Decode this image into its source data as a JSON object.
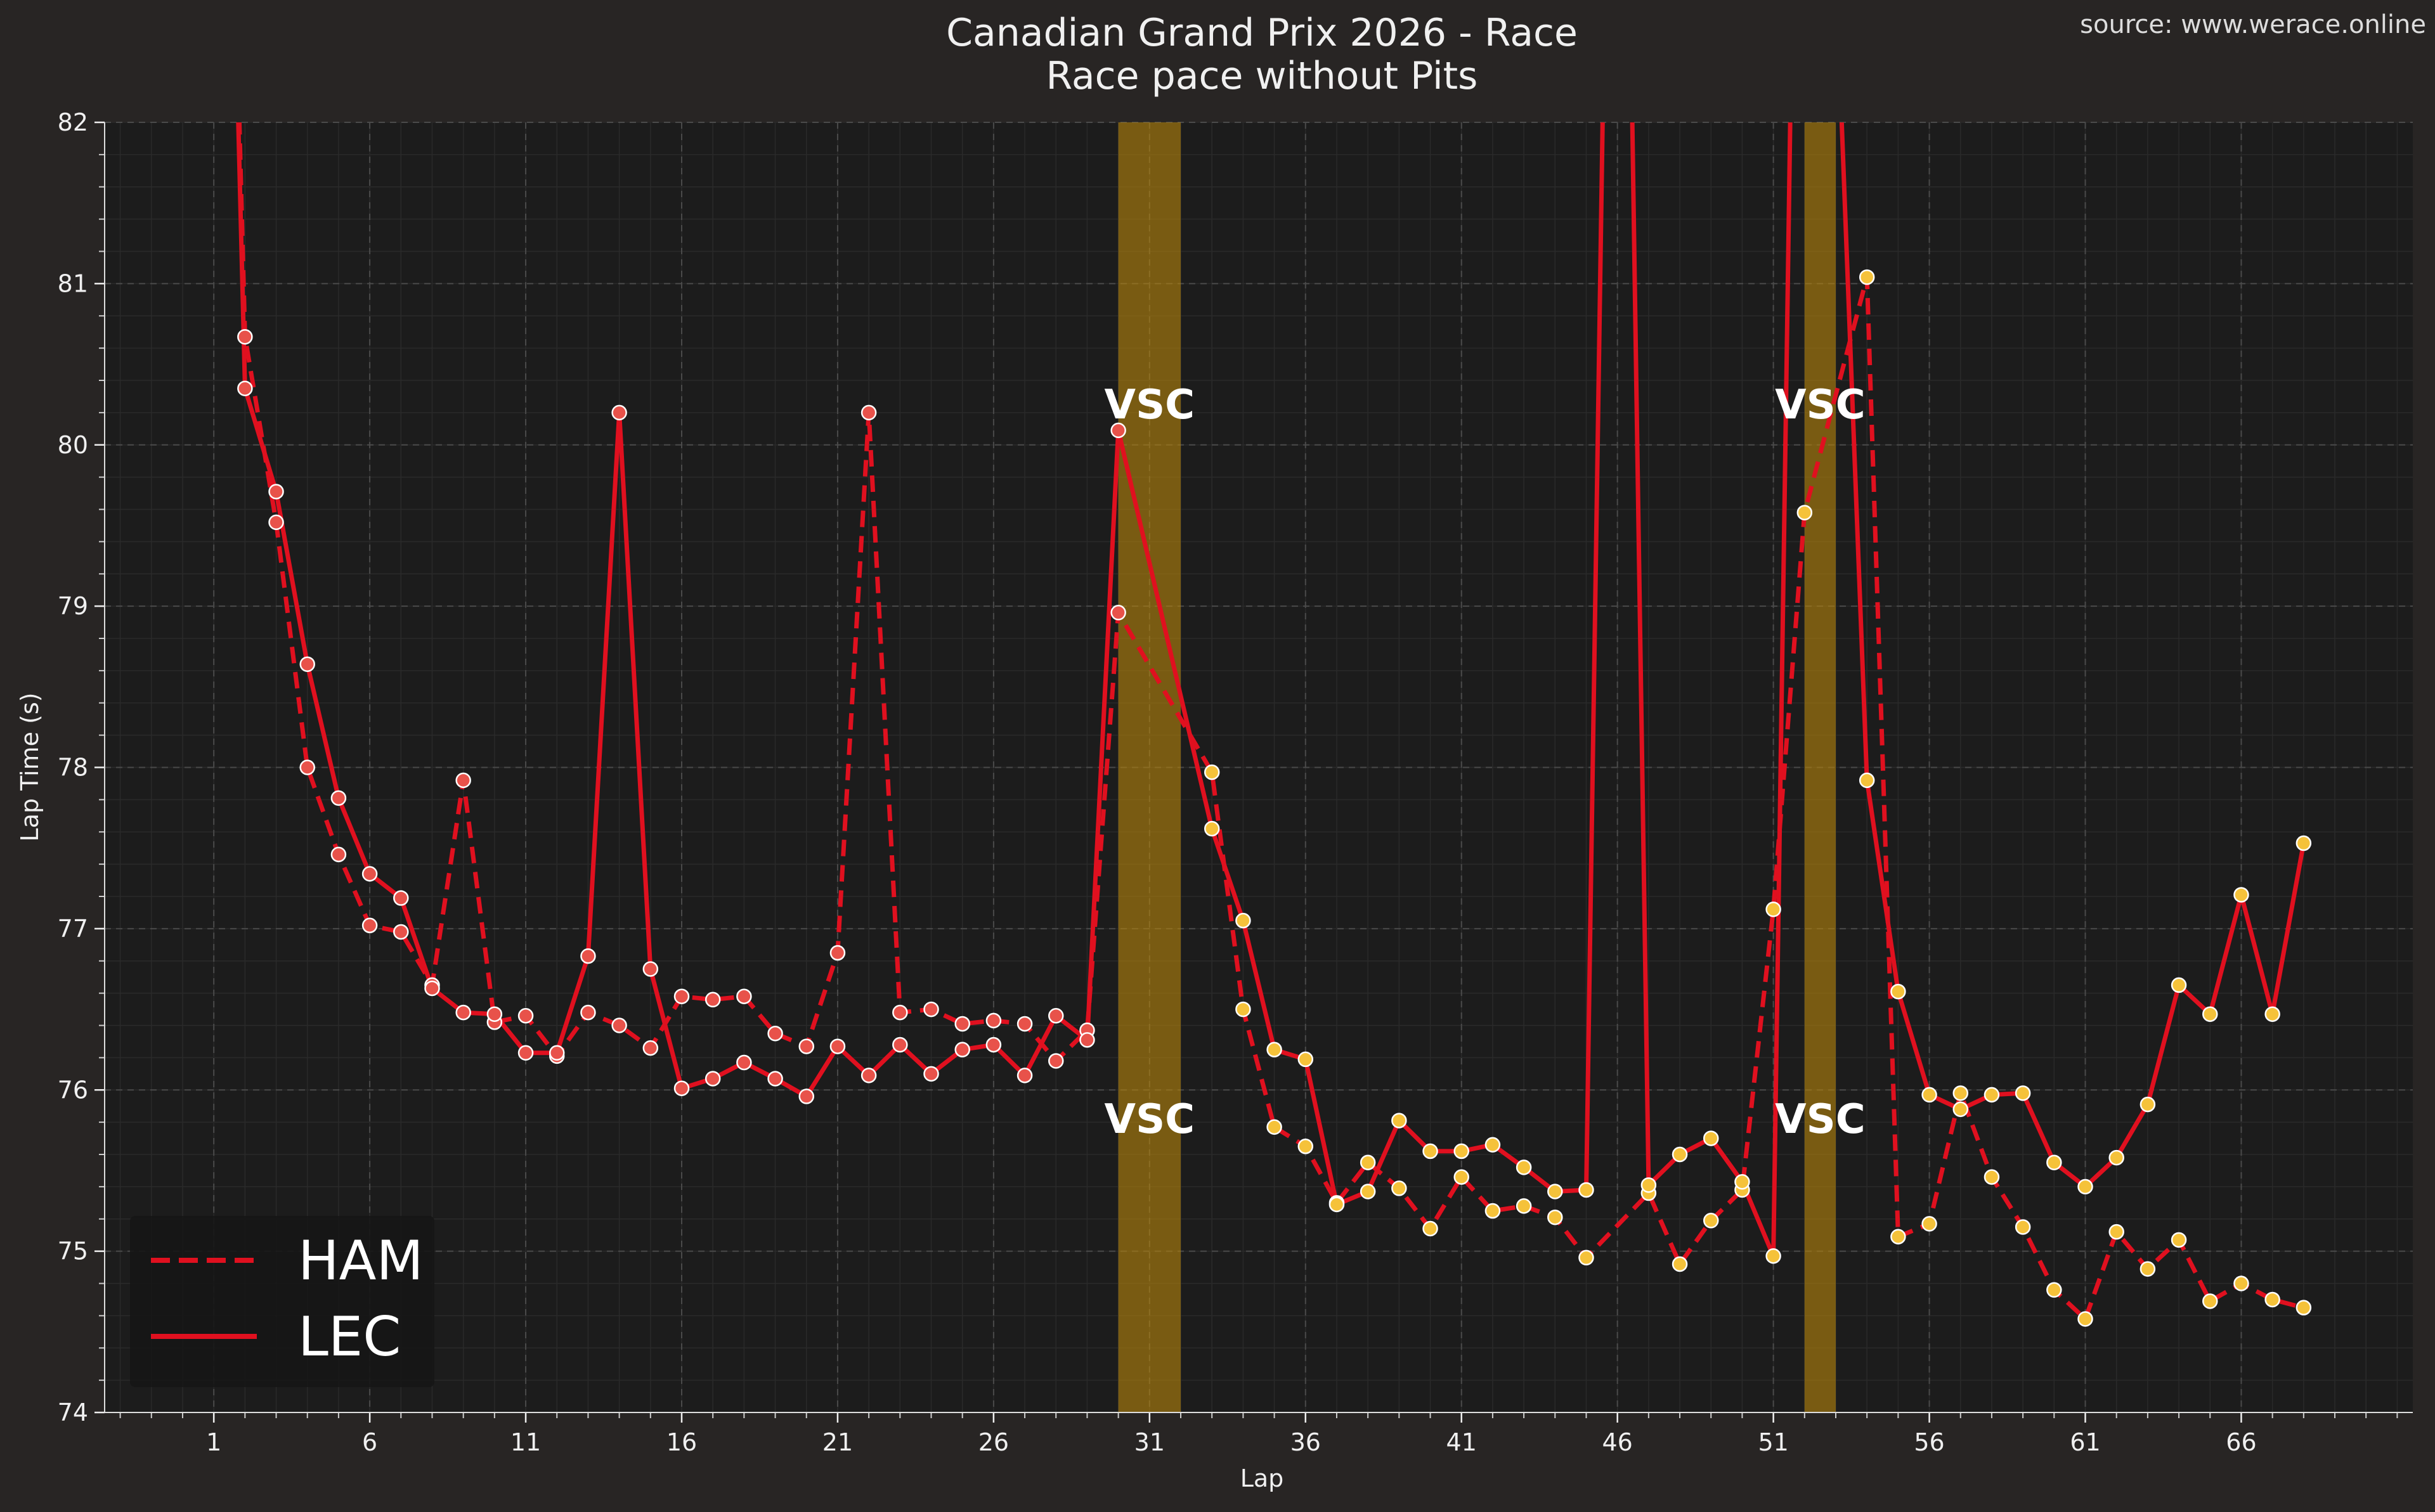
{
  "chart_data": {
    "type": "line",
    "title": "Canadian Grand Prix 2026 - Race",
    "subtitle": "Race pace without Pits",
    "source": "source: www.werace.online",
    "xlabel": "Lap",
    "ylabel": "Lap Time (s)",
    "xlim": [
      -2.5,
      71.5
    ],
    "ylim": [
      74,
      82
    ],
    "xticks": [
      1,
      6,
      11,
      16,
      21,
      26,
      31,
      36,
      41,
      46,
      51,
      56,
      61,
      66
    ],
    "yticks": [
      74,
      75,
      76,
      77,
      78,
      79,
      80,
      81,
      82
    ],
    "grid": true,
    "legend_position": "bottom-left",
    "vsc_periods": [
      {
        "start": 30,
        "end": 32,
        "label": "VSC"
      },
      {
        "start": 52,
        "end": 53,
        "label": "VSC"
      }
    ],
    "series": [
      {
        "name": "HAM",
        "color": "#e0101f",
        "style": "dashed",
        "points": [
          [
            1,
            88.0
          ],
          [
            2,
            80.67
          ],
          [
            3,
            79.52
          ],
          [
            4,
            78.0
          ],
          [
            5,
            77.46
          ],
          [
            6,
            77.02
          ],
          [
            7,
            76.98
          ],
          [
            8,
            76.65
          ],
          [
            9,
            77.92
          ],
          [
            10,
            76.42
          ],
          [
            11,
            76.46
          ],
          [
            12,
            76.21
          ],
          [
            13,
            76.48
          ],
          [
            14,
            76.4
          ],
          [
            15,
            76.26
          ],
          [
            16,
            76.58
          ],
          [
            17,
            76.56
          ],
          [
            18,
            76.58
          ],
          [
            19,
            76.35
          ],
          [
            20,
            76.27
          ],
          [
            21,
            76.85
          ],
          [
            22,
            80.2
          ],
          [
            23,
            76.48
          ],
          [
            24,
            76.5
          ],
          [
            25,
            76.41
          ],
          [
            26,
            76.43
          ],
          [
            27,
            76.41
          ],
          [
            28,
            76.18
          ],
          [
            29,
            76.37
          ],
          [
            30,
            78.96
          ],
          [
            33,
            77.97
          ],
          [
            34,
            76.5
          ],
          [
            35,
            75.77
          ],
          [
            36,
            75.65
          ],
          [
            37,
            75.3
          ],
          [
            38,
            75.55
          ],
          [
            39,
            75.39
          ],
          [
            40,
            75.14
          ],
          [
            41,
            75.46
          ],
          [
            42,
            75.25
          ],
          [
            43,
            75.28
          ],
          [
            44,
            75.21
          ],
          [
            45,
            74.96
          ],
          [
            47,
            75.36
          ],
          [
            48,
            74.92
          ],
          [
            49,
            75.19
          ],
          [
            50,
            75.38
          ],
          [
            51,
            77.12
          ],
          [
            52,
            79.58
          ],
          [
            54,
            81.04
          ],
          [
            55,
            75.09
          ],
          [
            56,
            75.17
          ],
          [
            57,
            75.98
          ],
          [
            58,
            75.46
          ],
          [
            59,
            75.15
          ],
          [
            60,
            74.76
          ],
          [
            61,
            74.58
          ],
          [
            62,
            75.12
          ],
          [
            63,
            74.89
          ],
          [
            64,
            75.07
          ],
          [
            65,
            74.69
          ],
          [
            66,
            74.8
          ],
          [
            67,
            74.7
          ],
          [
            68,
            74.65
          ]
        ]
      },
      {
        "name": "LEC",
        "color": "#e0101f",
        "style": "solid",
        "points": [
          [
            1,
            88.0
          ],
          [
            2,
            80.35
          ],
          [
            3,
            79.71
          ],
          [
            4,
            78.64
          ],
          [
            5,
            77.81
          ],
          [
            6,
            77.34
          ],
          [
            7,
            77.19
          ],
          [
            8,
            76.63
          ],
          [
            9,
            76.48
          ],
          [
            10,
            76.47
          ],
          [
            11,
            76.23
          ],
          [
            12,
            76.23
          ],
          [
            13,
            76.83
          ],
          [
            14,
            80.2
          ],
          [
            15,
            76.75
          ],
          [
            16,
            76.01
          ],
          [
            17,
            76.07
          ],
          [
            18,
            76.17
          ],
          [
            19,
            76.07
          ],
          [
            20,
            75.96
          ],
          [
            21,
            76.27
          ],
          [
            22,
            76.09
          ],
          [
            23,
            76.28
          ],
          [
            24,
            76.1
          ],
          [
            25,
            76.25
          ],
          [
            26,
            76.28
          ],
          [
            27,
            76.09
          ],
          [
            28,
            76.46
          ],
          [
            29,
            76.31
          ],
          [
            30,
            80.09
          ],
          [
            33,
            77.62
          ],
          [
            34,
            77.05
          ],
          [
            35,
            76.25
          ],
          [
            36,
            76.19
          ],
          [
            37,
            75.29
          ],
          [
            38,
            75.37
          ],
          [
            39,
            75.81
          ],
          [
            40,
            75.62
          ],
          [
            41,
            75.62
          ],
          [
            42,
            75.66
          ],
          [
            43,
            75.52
          ],
          [
            44,
            75.37
          ],
          [
            45,
            75.38
          ],
          [
            46,
            88.0
          ],
          [
            47,
            75.41
          ],
          [
            48,
            75.6
          ],
          [
            49,
            75.7
          ],
          [
            50,
            75.43
          ],
          [
            51,
            74.97
          ],
          [
            52,
            88.0
          ],
          [
            54,
            77.92
          ],
          [
            55,
            76.61
          ],
          [
            56,
            75.97
          ],
          [
            57,
            75.88
          ],
          [
            58,
            75.97
          ],
          [
            59,
            75.98
          ],
          [
            60,
            75.55
          ],
          [
            61,
            75.4
          ],
          [
            62,
            75.58
          ],
          [
            63,
            75.91
          ],
          [
            64,
            76.65
          ],
          [
            65,
            76.47
          ],
          [
            66,
            77.21
          ],
          [
            67,
            76.47
          ],
          [
            68,
            77.53
          ]
        ]
      }
    ]
  }
}
